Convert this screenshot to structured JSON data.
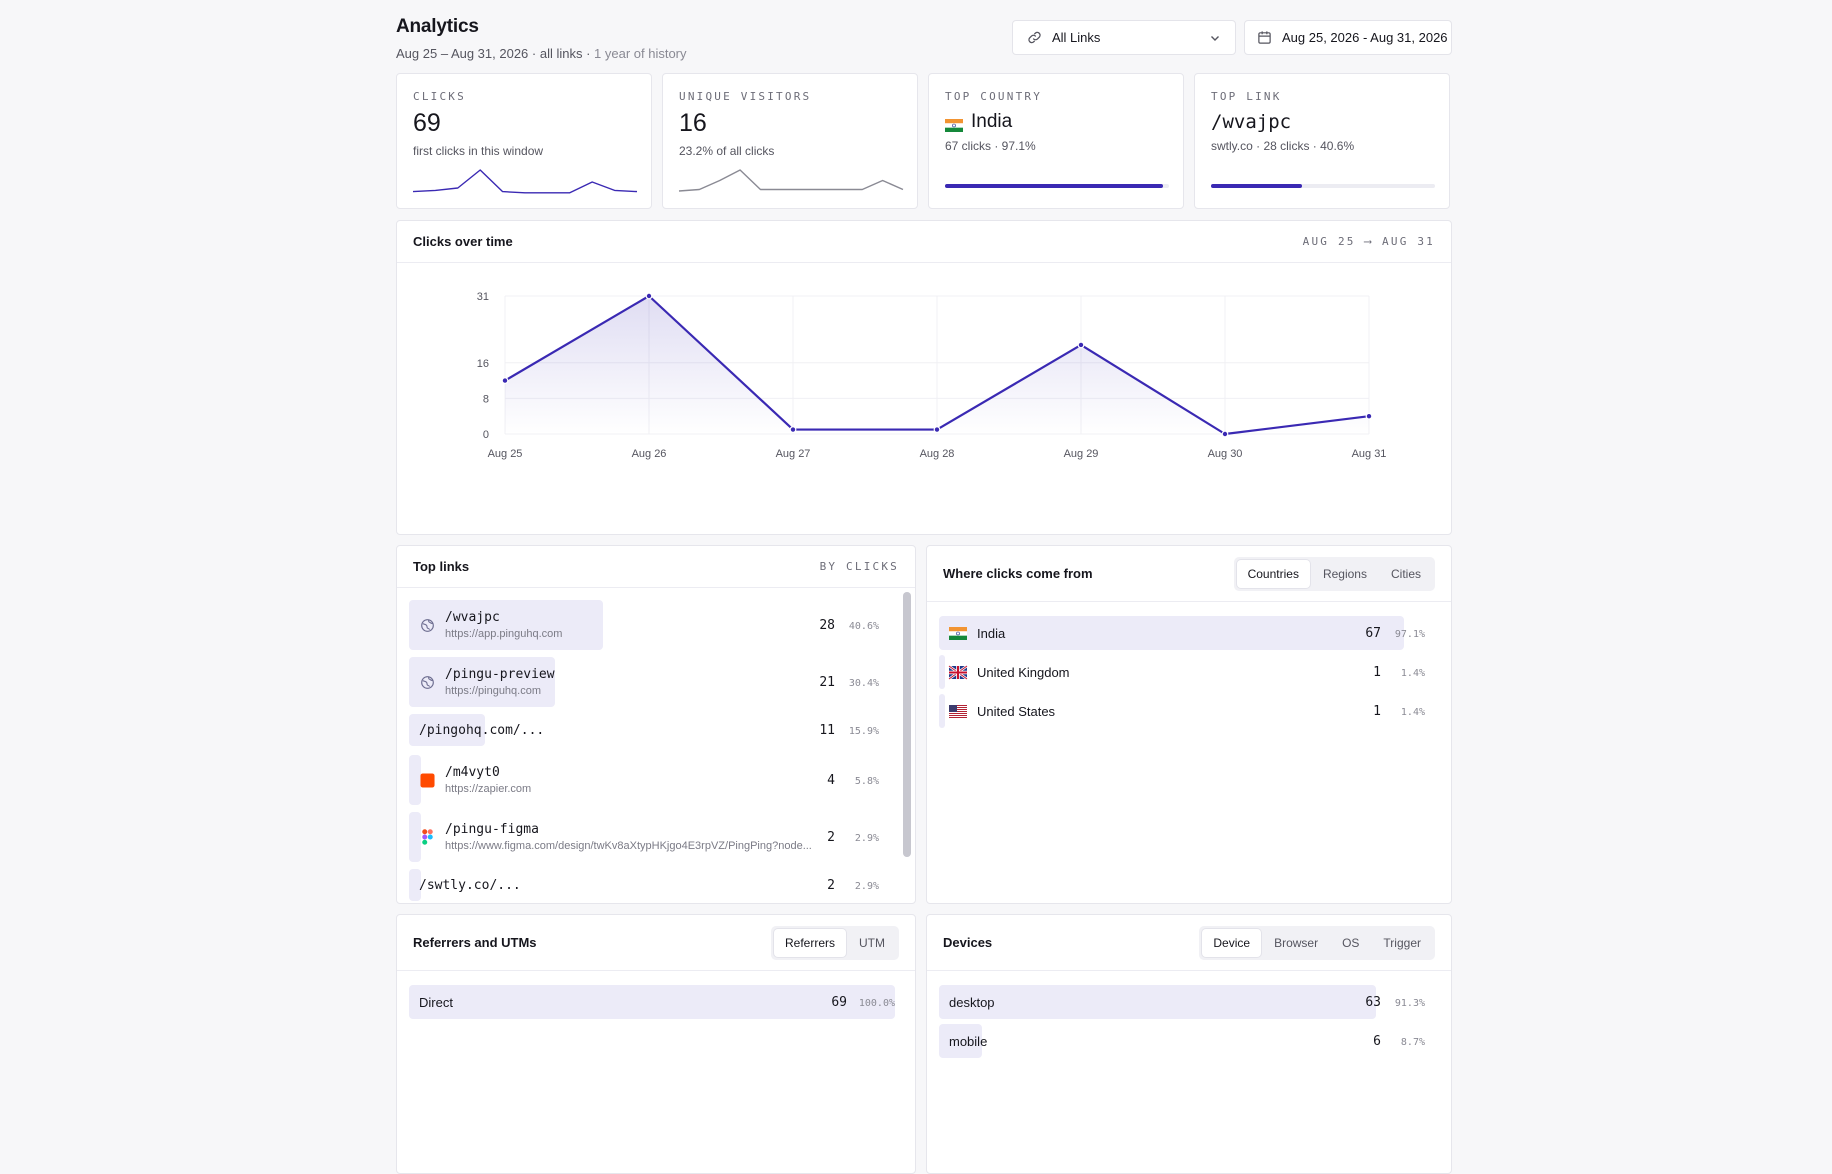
{
  "header": {
    "title": "Analytics",
    "subtitle_main": "Aug 25 – Aug 31, 2026 · all links · ",
    "subtitle_muted": "1 year of history",
    "links_select": "All Links",
    "date_select": "Aug 25, 2026 - Aug 31, 2026",
    "icons": [
      "link-icon",
      "chevron-down-icon",
      "calendar-icon"
    ]
  },
  "kpis": {
    "clicks": {
      "label": "Clicks",
      "value": "69",
      "sub": "first clicks in this window",
      "spark": [
        2,
        3,
        5,
        20,
        2,
        1,
        1,
        1,
        10,
        3,
        2
      ]
    },
    "visitors": {
      "label": "Unique visitors",
      "value": "16",
      "sub": "23.2% of all clicks",
      "spark": [
        2,
        3,
        9,
        16,
        3,
        3,
        3,
        3,
        3,
        3,
        9,
        3
      ]
    },
    "country": {
      "label": "Top country",
      "value": "India",
      "sub": "67 clicks · 97.1%",
      "fill": 0.971
    },
    "link": {
      "label": "Top link",
      "value": "/wvajpc",
      "sub": "swtly.co · 28 clicks · 40.6%",
      "fill": 0.406
    }
  },
  "chart_data": {
    "type": "area",
    "title": "Clicks over time",
    "range_label": "AUG 25 ⟶ AUG 31",
    "categories": [
      "Aug 25",
      "Aug 26",
      "Aug 27",
      "Aug 28",
      "Aug 29",
      "Aug 30",
      "Aug 31"
    ],
    "series": [
      {
        "values": [
          12,
          31,
          1,
          1,
          20,
          0,
          4
        ]
      }
    ],
    "yticks": [
      0,
      8,
      16,
      31
    ],
    "ylim": [
      0,
      31
    ],
    "grid": true,
    "color": "#3a29b3"
  },
  "top_links": {
    "title": "Top links",
    "tag": "BY CLICKS",
    "items": [
      {
        "path": "/wvajpc",
        "url": "https://app.pinguhq.com",
        "clicks": "28",
        "pct": "40.6%",
        "share": 0.406,
        "icon": "globe-icon"
      },
      {
        "path": "/pingu-preview",
        "url": "https://pinguhq.com",
        "clicks": "21",
        "pct": "30.4%",
        "share": 0.304,
        "icon": "globe-icon"
      },
      {
        "path": "/pingohq.com/...",
        "url": "",
        "clicks": "11",
        "pct": "15.9%",
        "share": 0.159,
        "icon": ""
      },
      {
        "path": "/m4vyt0",
        "url": "https://zapier.com",
        "clicks": "4",
        "pct": "5.8%",
        "share": 0.058,
        "icon": "zapier-icon"
      },
      {
        "path": "/pingu-figma",
        "url": "https://www.figma.com/design/twKv8aXtypHKjgo4E3rpVZ/PingPing?node...",
        "clicks": "2",
        "pct": "2.9%",
        "share": 0.029,
        "icon": "figma-icon"
      },
      {
        "path": "/swtly.co/...",
        "url": "",
        "clicks": "2",
        "pct": "2.9%",
        "share": 0.029,
        "icon": ""
      }
    ]
  },
  "geo": {
    "title": "Where clicks come from",
    "tabs": [
      "Countries",
      "Regions",
      "Cities"
    ],
    "items": [
      {
        "name": "India",
        "clicks": "67",
        "pct": "97.1%",
        "share": 0.971,
        "flag": "india-flag-icon"
      },
      {
        "name": "United Kingdom",
        "clicks": "1",
        "pct": "1.4%",
        "share": 0.014,
        "flag": "uk-flag-icon"
      },
      {
        "name": "United States",
        "clicks": "1",
        "pct": "1.4%",
        "share": 0.014,
        "flag": "us-flag-icon"
      }
    ]
  },
  "referrers": {
    "title": "Referrers and UTMs",
    "tabs": [
      "Referrers",
      "UTM"
    ],
    "items": [
      {
        "name": "Direct",
        "clicks": "69",
        "pct": "100.0%",
        "share": 1.0
      }
    ]
  },
  "devices": {
    "title": "Devices",
    "tabs": [
      "Device",
      "Browser",
      "OS",
      "Trigger"
    ],
    "items": [
      {
        "name": "desktop",
        "clicks": "63",
        "pct": "91.3%",
        "share": 0.913
      },
      {
        "name": "mobile",
        "clicks": "6",
        "pct": "8.7%",
        "share": 0.087
      }
    ]
  }
}
